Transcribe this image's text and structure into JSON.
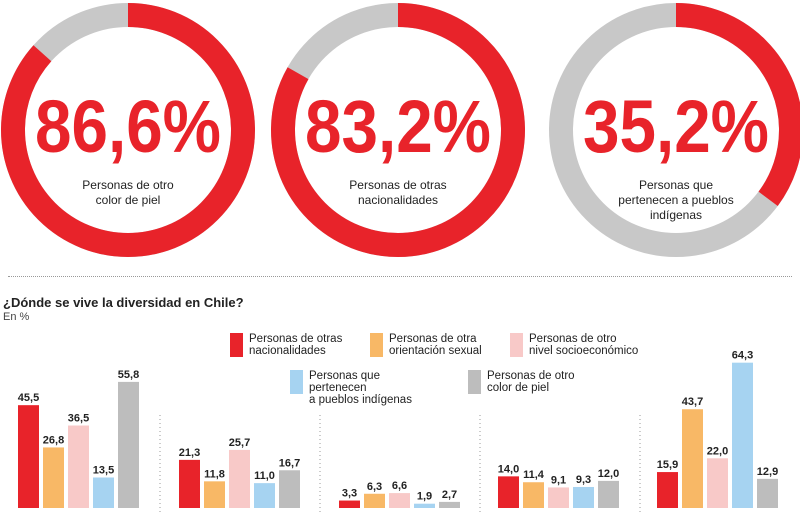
{
  "colors": {
    "red": "#e8232a",
    "grey_ring": "#c8c8c8",
    "orange": "#f8b866",
    "pink": "#f8c9c8",
    "blue": "#a6d3f1",
    "grey": "#bdbdbd"
  },
  "rings": [
    {
      "value_label": "86,6%",
      "fraction": 0.866,
      "caption_lines": [
        "Personas de otro",
        "color de piel"
      ]
    },
    {
      "value_label": "83,2%",
      "fraction": 0.832,
      "caption_lines": [
        "Personas de otras",
        "nacionalidades"
      ]
    },
    {
      "value_label": "35,2%",
      "fraction": 0.352,
      "caption_lines": [
        "Personas que",
        "pertenecen a pueblos",
        "indígenas"
      ]
    }
  ],
  "chart_data": {
    "type": "bar",
    "title": "¿Dónde se vive la diversidad en Chile?",
    "subtitle": "En %",
    "series": [
      {
        "name": "Personas de otras nacionalidades",
        "legend_lines": [
          "Personas de otras",
          "nacionalidades"
        ],
        "color": "#e8232a",
        "values": [
          45.5,
          21.3,
          3.3,
          14.0,
          15.9
        ],
        "labels": [
          "45,5",
          "21,3",
          "3,3",
          "14,0",
          "15,9"
        ]
      },
      {
        "name": "Personas de otra orientación sexual",
        "legend_lines": [
          "Personas de otra",
          "orientación sexual"
        ],
        "color": "#f8b866",
        "values": [
          26.8,
          11.8,
          6.3,
          11.4,
          43.7
        ],
        "labels": [
          "26,8",
          "11,8",
          "6,3",
          "11,4",
          "43,7"
        ]
      },
      {
        "name": "Personas de otro nivel socioeconómico",
        "legend_lines": [
          "Personas de otro",
          "nivel socioeconómico"
        ],
        "color": "#f8c9c8",
        "values": [
          36.5,
          25.7,
          6.6,
          9.1,
          22.0
        ],
        "labels": [
          "36,5",
          "25,7",
          "6,6",
          "9,1",
          "22,0"
        ]
      },
      {
        "name": "Personas que pertenecen a pueblos indígenas",
        "legend_lines": [
          "Personas que pertenecen",
          "a pueblos indígenas"
        ],
        "color": "#a6d3f1",
        "values": [
          13.5,
          11.0,
          1.9,
          9.3,
          64.3
        ],
        "labels": [
          "13,5",
          "11,0",
          "1,9",
          "9,3",
          "64,3"
        ]
      },
      {
        "name": "Personas de otro color de piel",
        "legend_lines": [
          "Personas de otro",
          "color de piel"
        ],
        "color": "#bdbdbd",
        "values": [
          55.8,
          16.7,
          2.7,
          12.0,
          12.9
        ],
        "labels": [
          "55,8",
          "16,7",
          "2,7",
          "12,0",
          "12,9"
        ]
      }
    ],
    "groups": 5,
    "ylim": [
      0,
      70
    ]
  }
}
